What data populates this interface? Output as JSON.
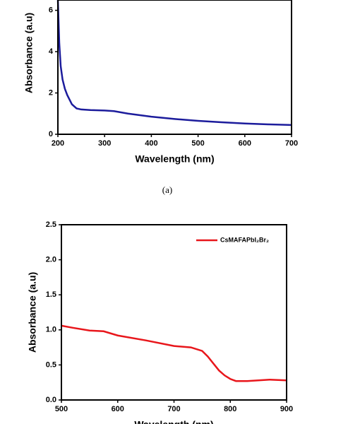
{
  "chart_data": [
    {
      "type": "line",
      "caption": "(a)",
      "xlabel": "Wavelength (nm)",
      "ylabel": "Absorbance (a.u)",
      "x": [
        200,
        203,
        206,
        210,
        215,
        220,
        230,
        240,
        250,
        270,
        300,
        320,
        350,
        400,
        450,
        500,
        550,
        600,
        650,
        700
      ],
      "series": [
        {
          "color": "#1c1c9c",
          "values": [
            6.5,
            4.4,
            3.3,
            2.65,
            2.2,
            1.9,
            1.45,
            1.25,
            1.2,
            1.17,
            1.15,
            1.12,
            1.0,
            0.85,
            0.74,
            0.65,
            0.58,
            0.52,
            0.48,
            0.45
          ]
        }
      ],
      "xlim": [
        200,
        700
      ],
      "xticks": [
        200,
        300,
        400,
        500,
        600,
        700
      ],
      "ylim": [
        0,
        6.5
      ],
      "yticks": [
        0,
        2,
        4,
        6
      ]
    },
    {
      "type": "line",
      "xlabel": "Wavelength (nm)",
      "ylabel": "Absorbance (a.u)",
      "x": [
        500,
        520,
        550,
        575,
        600,
        650,
        700,
        730,
        750,
        760,
        770,
        780,
        790,
        800,
        810,
        830,
        870,
        900
      ],
      "series": [
        {
          "name": "CsMAFAPbI₂Br₂",
          "color": "#e8161b",
          "values": [
            1.06,
            1.03,
            0.99,
            0.98,
            0.92,
            0.85,
            0.77,
            0.75,
            0.7,
            0.62,
            0.52,
            0.42,
            0.35,
            0.3,
            0.27,
            0.27,
            0.29,
            0.28
          ]
        }
      ],
      "xlim": [
        500,
        900
      ],
      "xticks": [
        500,
        600,
        700,
        800,
        900
      ],
      "ylim": [
        0,
        2.5
      ],
      "yticks": [
        {
          "value": 0,
          "label": "0.0"
        },
        {
          "value": 0.5,
          "label": "0.5"
        },
        {
          "value": 1,
          "label": "1.0"
        },
        {
          "value": 1.5,
          "label": "1.5"
        },
        {
          "value": 2,
          "label": "2.0"
        },
        {
          "value": 2.5,
          "label": "2.5"
        }
      ],
      "legend": "upper right"
    }
  ]
}
